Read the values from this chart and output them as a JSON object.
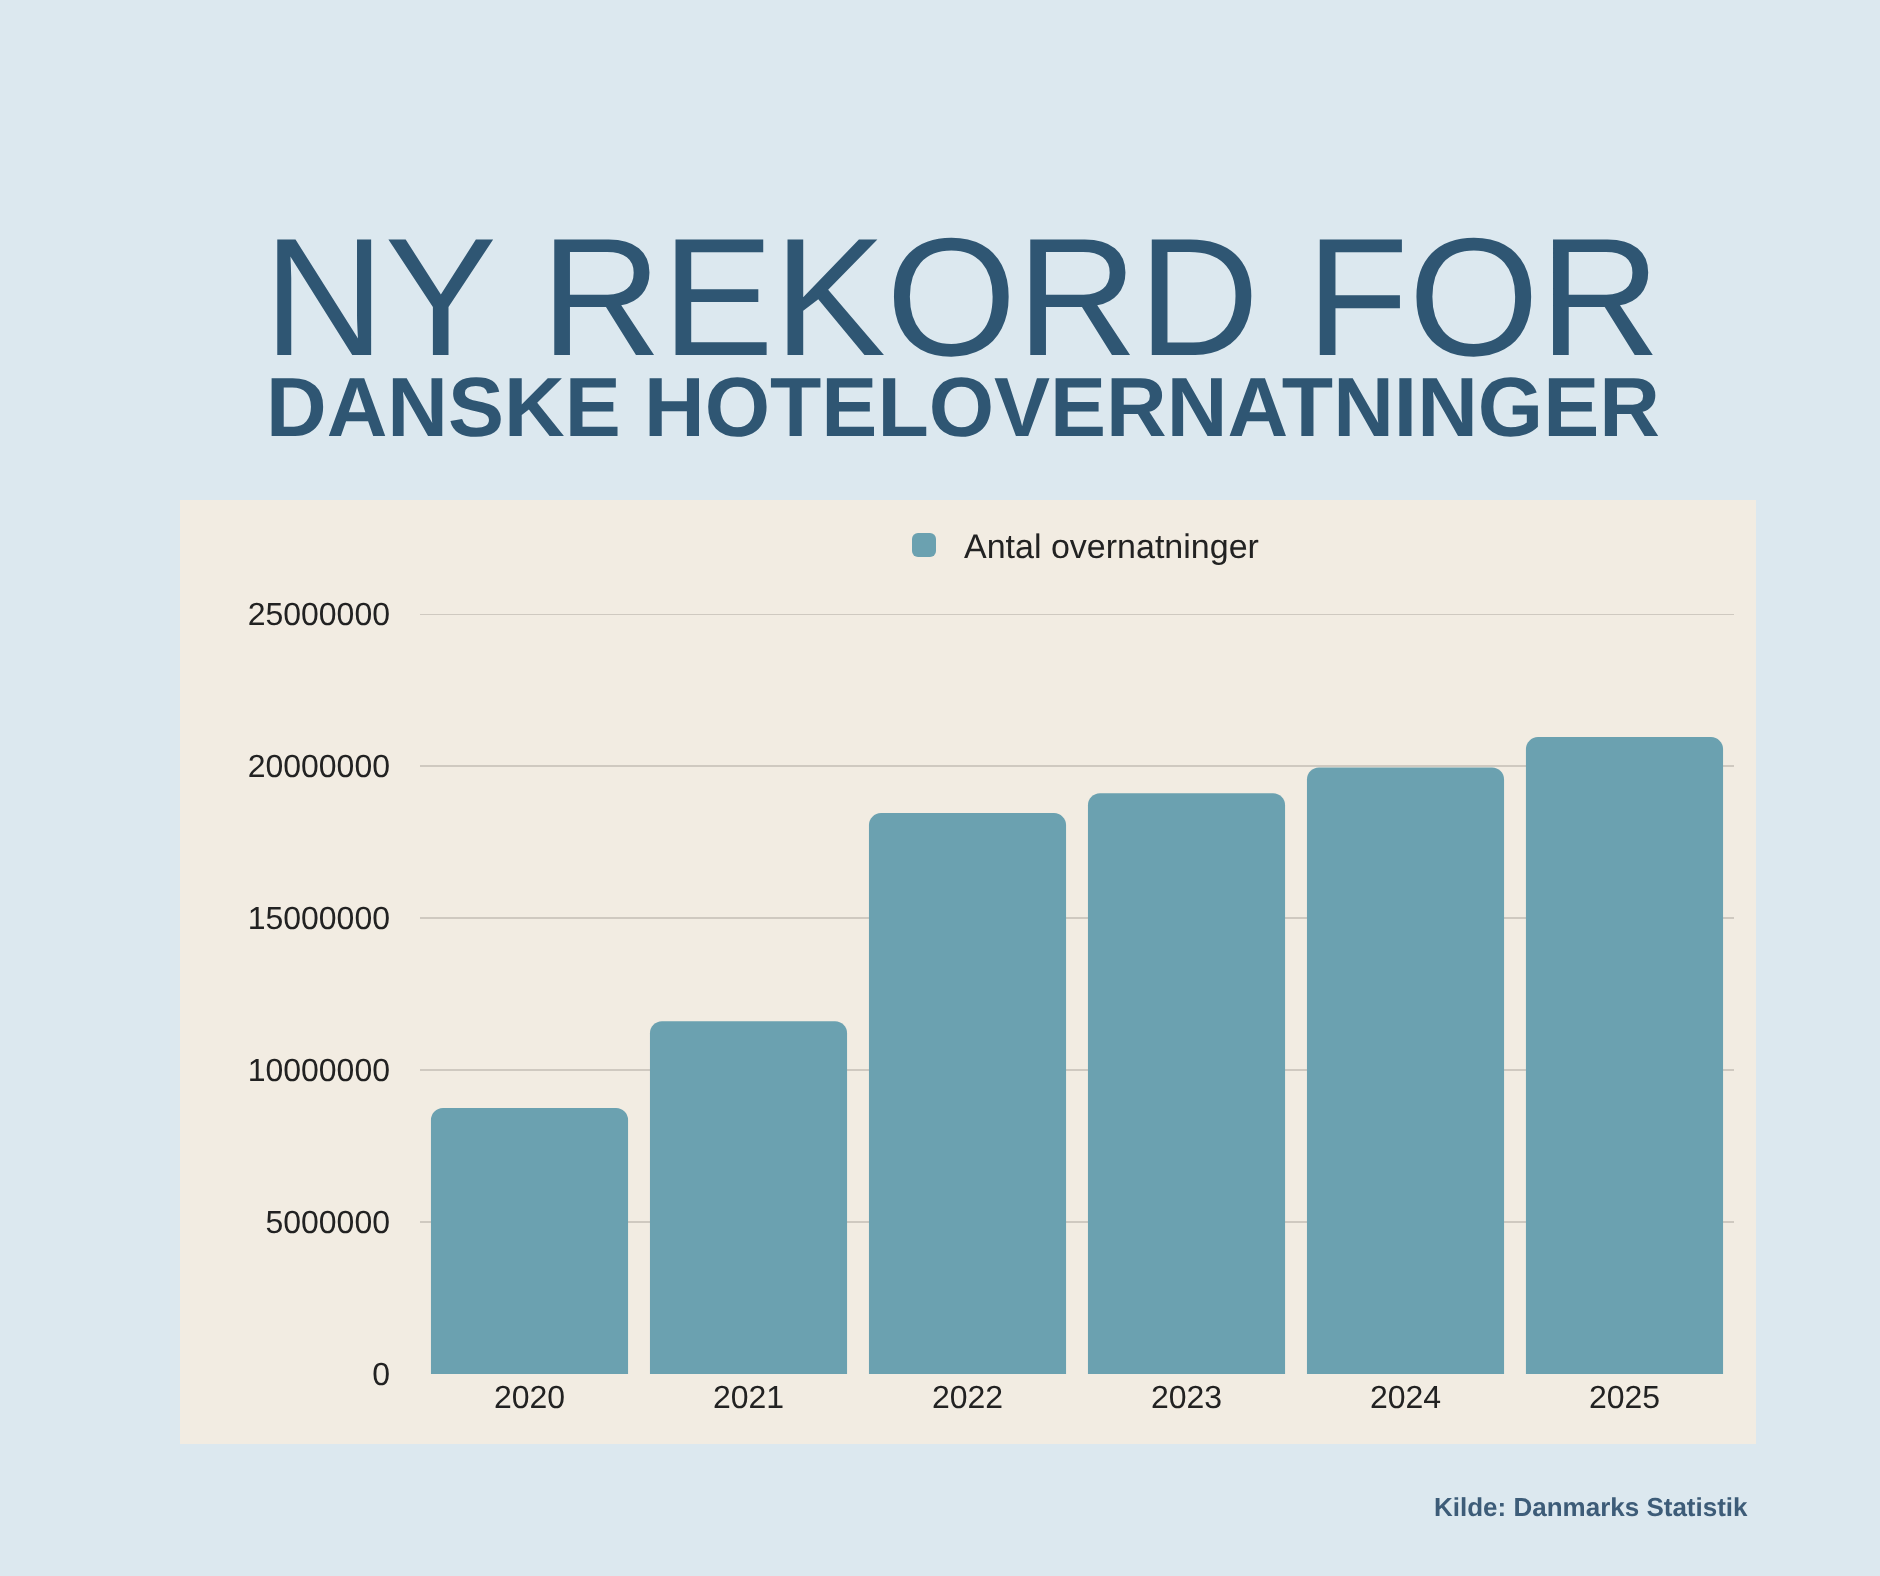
{
  "chart_data": {
    "type": "bar",
    "title": "NY REKORD FOR",
    "subtitle": "DANSKE HOTELOVERNATNINGER",
    "categories": [
      "2020",
      "2021",
      "2022",
      "2023",
      "2024",
      "2025"
    ],
    "series": [
      {
        "name": "Antal overnatninger",
        "color": "#6ba1b0",
        "values": [
          8750000,
          11600000,
          18450000,
          19100000,
          19950000,
          20950000
        ]
      }
    ],
    "ylim": [
      0,
      25000000
    ],
    "yticks": [
      0,
      5000000,
      10000000,
      15000000,
      20000000,
      25000000
    ],
    "grid": "y",
    "legend": "top",
    "annotations": [
      "Kilde: Danmarks Statistik"
    ]
  }
}
